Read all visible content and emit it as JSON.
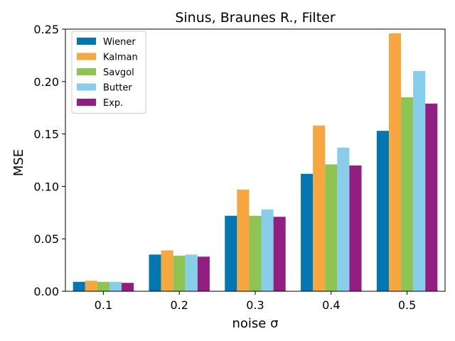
{
  "chart_data": {
    "type": "bar",
    "title": "Sinus, Braunes R., Filter",
    "xlabel": "noise σ",
    "ylabel": "MSE",
    "categories": [
      "0.1",
      "0.2",
      "0.3",
      "0.4",
      "0.5"
    ],
    "ylim": [
      0,
      0.25
    ],
    "yticks": [
      "0.00",
      "0.05",
      "0.10",
      "0.15",
      "0.20",
      "0.25"
    ],
    "grid": false,
    "legend_position": "top-left",
    "series": [
      {
        "name": "Wiener",
        "color": "#0077b0",
        "values": [
          0.009,
          0.035,
          0.072,
          0.112,
          0.153
        ]
      },
      {
        "name": "Kalman",
        "color": "#f6a73f",
        "values": [
          0.01,
          0.039,
          0.097,
          0.158,
          0.246
        ]
      },
      {
        "name": "Savgol",
        "color": "#8ec453",
        "values": [
          0.009,
          0.034,
          0.072,
          0.121,
          0.185
        ]
      },
      {
        "name": "Butter",
        "color": "#87ceeb",
        "values": [
          0.009,
          0.035,
          0.078,
          0.137,
          0.21
        ]
      },
      {
        "name": "Exp.",
        "color": "#931e81",
        "values": [
          0.008,
          0.033,
          0.071,
          0.12,
          0.179
        ]
      }
    ]
  }
}
